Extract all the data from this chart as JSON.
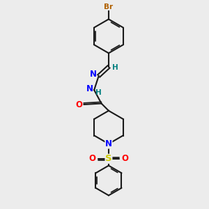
{
  "background_color": "#ececec",
  "bond_color": "#1a1a1a",
  "atom_colors": {
    "Br": "#b06000",
    "N": "#0000ff",
    "O": "#ff0000",
    "S": "#cccc00",
    "H": "#008080",
    "C": "#1a1a1a"
  },
  "figsize": [
    3.0,
    3.0
  ],
  "dpi": 100
}
